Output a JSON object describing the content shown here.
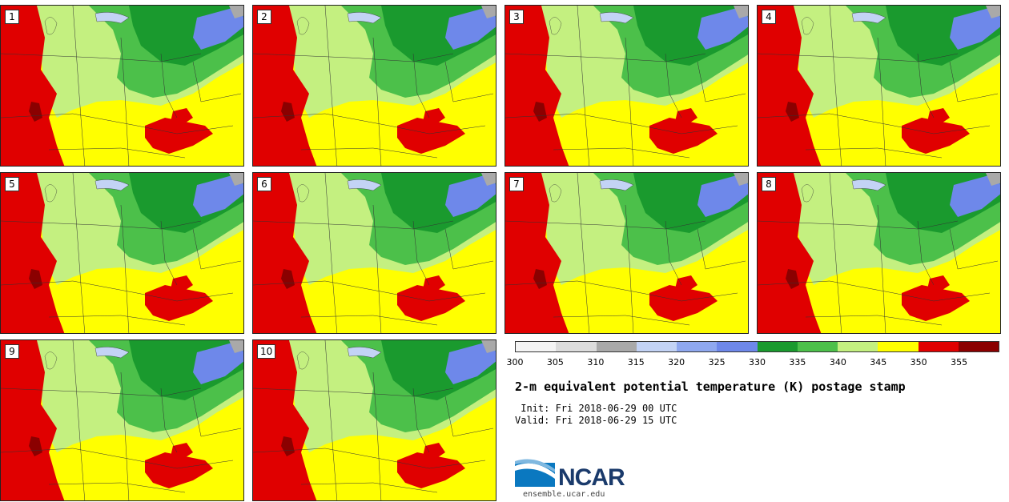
{
  "stamps": [
    {
      "label": "1"
    },
    {
      "label": "2"
    },
    {
      "label": "3"
    },
    {
      "label": "4"
    },
    {
      "label": "5"
    },
    {
      "label": "6"
    },
    {
      "label": "7"
    },
    {
      "label": "8"
    },
    {
      "label": "9"
    },
    {
      "label": "10"
    }
  ],
  "colorbar": {
    "bins": [
      "#f4f4f4",
      "#dcdcdc",
      "#a9a9a9",
      "#c3d3f5",
      "#8fa8ef",
      "#6e88ea",
      "#1a9a2e",
      "#4cc04a",
      "#c4f080",
      "#ffff00",
      "#e00000",
      "#8b0000"
    ],
    "ticks": [
      "300",
      "305",
      "310",
      "315",
      "320",
      "325",
      "330",
      "335",
      "340",
      "345",
      "350",
      "355"
    ]
  },
  "title": "2-m equivalent potential temperature (K) postage stamp",
  "init": " Init: Fri 2018-06-29 00 UTC",
  "valid": "Valid: Fri 2018-06-29 15 UTC",
  "logo": {
    "name": "NCAR",
    "url": "ensemble.ucar.edu"
  }
}
